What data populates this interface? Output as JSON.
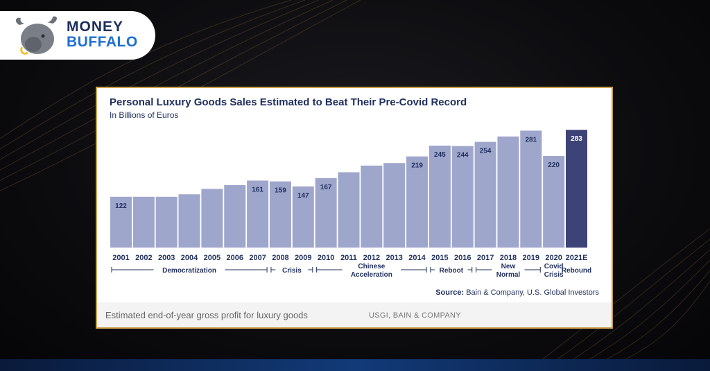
{
  "brand": {
    "line1": "MONEY",
    "line2": "BUFFALO",
    "icon": "buffalo-logo-icon"
  },
  "chart_data": {
    "type": "bar",
    "title": "Personal Luxury Goods Sales Estimated to Beat Their Pre-Covid Record",
    "subtitle": "In Billions of Euros",
    "categories": [
      "2001",
      "2002",
      "2003",
      "2004",
      "2005",
      "2006",
      "2007",
      "2008",
      "2009",
      "2010",
      "2011",
      "2012",
      "2013",
      "2014",
      "2015",
      "2016",
      "2017",
      "2018",
      "2019",
      "2020",
      "2021E"
    ],
    "values": [
      122,
      122,
      122,
      128,
      141,
      150,
      161,
      159,
      147,
      167,
      181,
      197,
      203,
      219,
      245,
      244,
      254,
      267,
      281,
      220,
      283
    ],
    "data_labels": [
      "122",
      "",
      "",
      "",
      "",
      "",
      "161",
      "159",
      "147",
      "167",
      "",
      "",
      "",
      "219",
      "245",
      "244",
      "254",
      "",
      "281",
      "220",
      "283"
    ],
    "highlight_index": 20,
    "colors": {
      "bar": "#9fa6cc",
      "highlight": "#3e4377",
      "label": "#1f2f5e"
    },
    "ylim": [
      0,
      300
    ],
    "grid": false,
    "eras": [
      {
        "label": "Democratization",
        "from": 0,
        "to": 6
      },
      {
        "label": "Crisis",
        "from": 7,
        "to": 8
      },
      {
        "label": "Chinese Acceleration",
        "from": 9,
        "to": 13
      },
      {
        "label": "Reboot",
        "from": 14,
        "to": 15
      },
      {
        "label": "New Normal",
        "from": 16,
        "to": 18
      },
      {
        "label": "Covid Crisis",
        "from": 19,
        "to": 19
      },
      {
        "label": "Rebound",
        "from": 20,
        "to": 20
      }
    ]
  },
  "source": {
    "prefix": "Source:",
    "text": "Bain & Company, U.S. Global Investors"
  },
  "caption": {
    "text": "Estimated end-of-year gross profit for luxury goods",
    "credit": "USGI, BAIN & COMPANY"
  }
}
